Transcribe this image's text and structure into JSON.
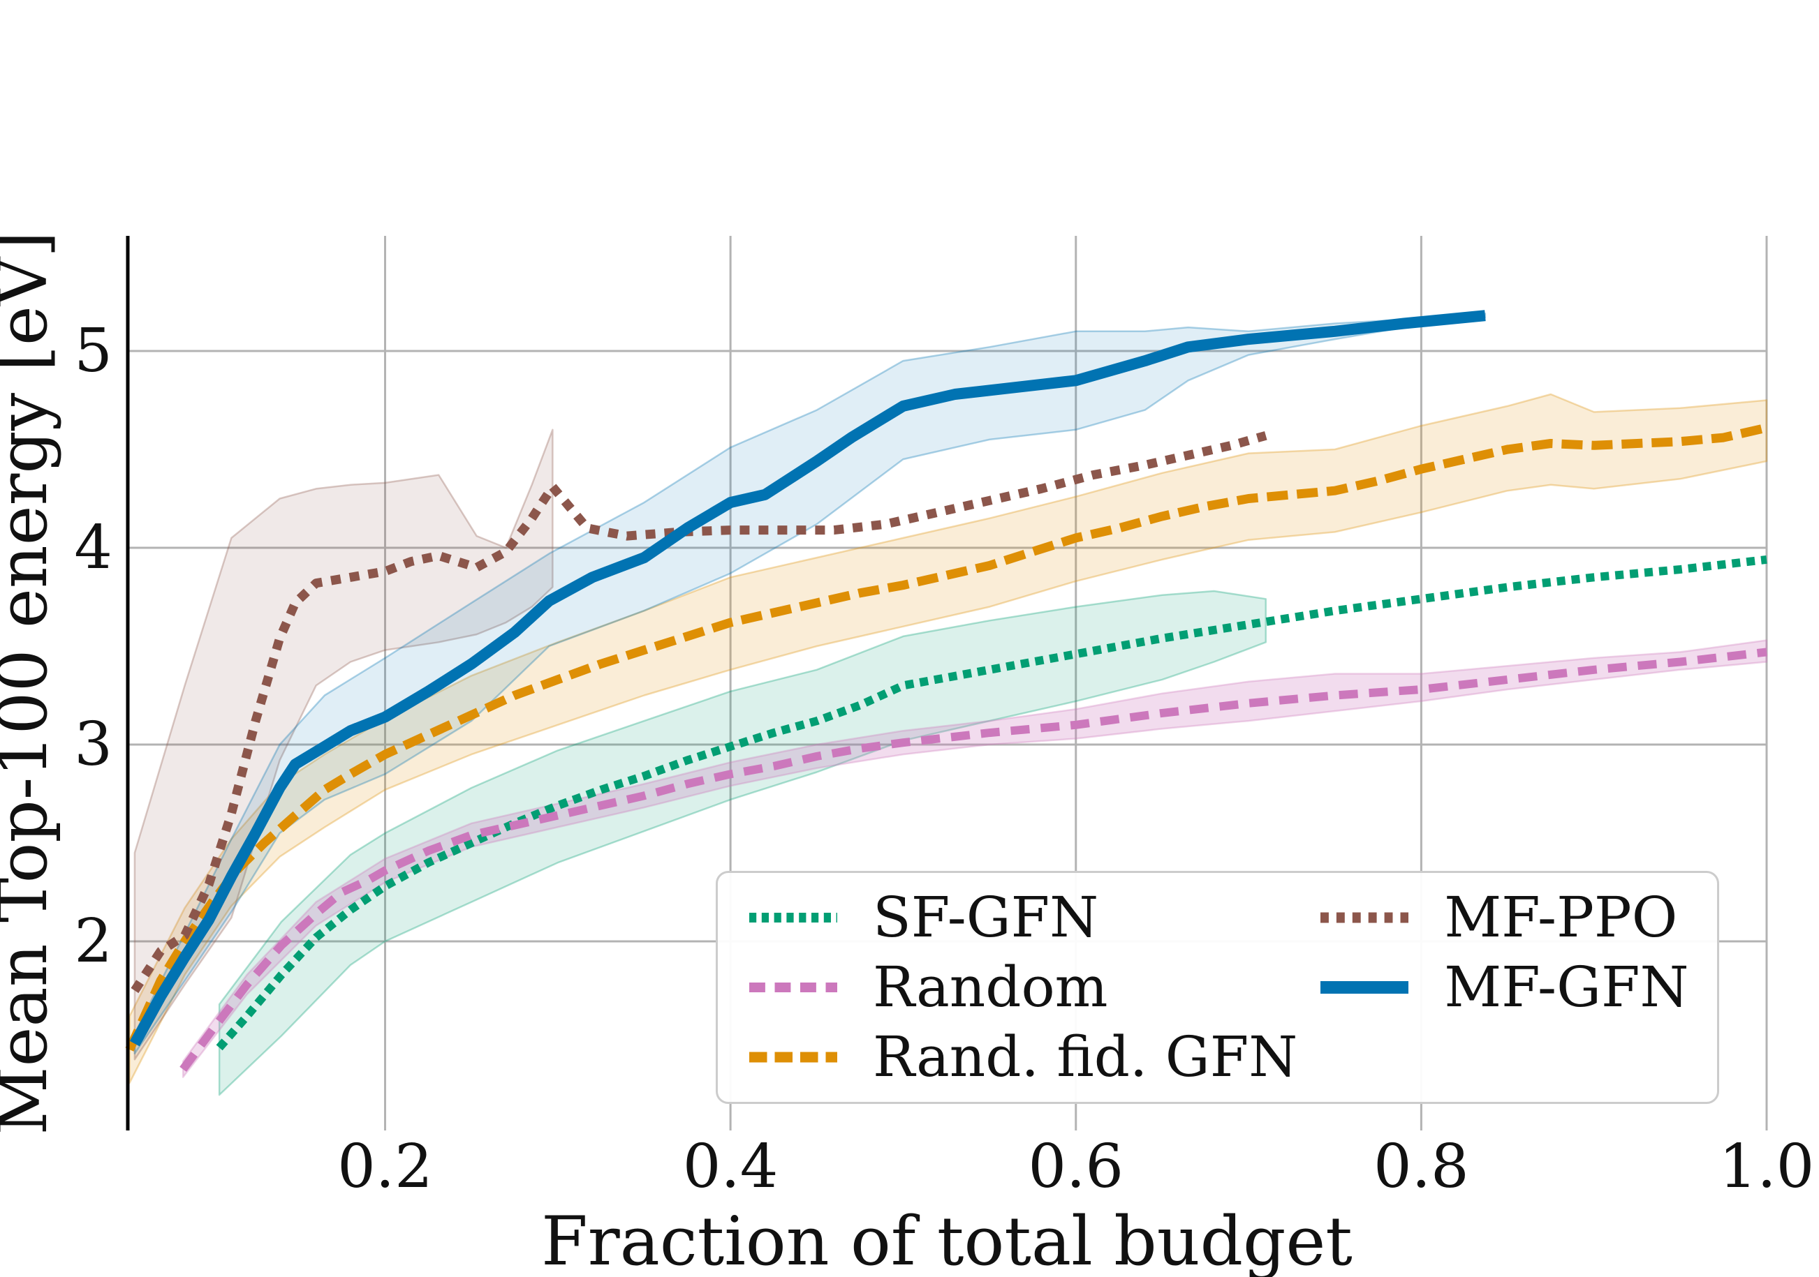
{
  "figure": {
    "background": "#ffffff"
  },
  "colors": {
    "grid": "#b3b3b3",
    "left_spine": "#000000",
    "text": "#111111",
    "legend_border": "#cccccc",
    "accent_blue": "#0173B2",
    "accent_orange": "#DE8F05",
    "accent_green": "#029E73",
    "accent_pink": "#CC78BC",
    "accent_brown": "#8C564B"
  },
  "chart_data": {
    "type": "line",
    "title": "",
    "xlabel": "Fraction of total budget",
    "ylabel": "Mean Top-100 energy [eV]",
    "xlim": [
      0.051,
      1.0
    ],
    "ylim": [
      1.039,
      5.585
    ],
    "grid": true,
    "legend_position": "lower right",
    "x_ticks": [
      {
        "v": 0.2,
        "label": "0.2"
      },
      {
        "v": 0.4,
        "label": "0.4"
      },
      {
        "v": 0.6,
        "label": "0.6"
      },
      {
        "v": 0.8,
        "label": "0.8"
      },
      {
        "v": 1.0,
        "label": "1.0"
      }
    ],
    "y_ticks": [
      {
        "v": 2,
        "label": "2"
      },
      {
        "v": 3,
        "label": "3"
      },
      {
        "v": 4,
        "label": "4"
      },
      {
        "v": 5,
        "label": "5"
      }
    ],
    "legend_columns": [
      [
        0,
        1,
        2
      ],
      [
        3,
        4
      ]
    ],
    "series": [
      {
        "name": "sf-gfn",
        "label": "SF-GFN",
        "color": "#029E73",
        "dash": "12 9",
        "width": 12,
        "band_opacity": 0.14,
        "points": [
          [
            0.104,
            1.46
          ],
          [
            0.12,
            1.62
          ],
          [
            0.14,
            1.83
          ],
          [
            0.16,
            2.02
          ],
          [
            0.18,
            2.16
          ],
          [
            0.2,
            2.28
          ],
          [
            0.225,
            2.4
          ],
          [
            0.25,
            2.5
          ],
          [
            0.275,
            2.6
          ],
          [
            0.3,
            2.69
          ],
          [
            0.325,
            2.77
          ],
          [
            0.35,
            2.84
          ],
          [
            0.375,
            2.92
          ],
          [
            0.4,
            2.99
          ],
          [
            0.425,
            3.06
          ],
          [
            0.45,
            3.12
          ],
          [
            0.475,
            3.2
          ],
          [
            0.5,
            3.3
          ],
          [
            0.55,
            3.38
          ],
          [
            0.6,
            3.46
          ],
          [
            0.65,
            3.54
          ],
          [
            0.7,
            3.61
          ],
          [
            0.75,
            3.68
          ],
          [
            0.8,
            3.74
          ],
          [
            0.85,
            3.8
          ],
          [
            0.9,
            3.85
          ],
          [
            0.95,
            3.89
          ],
          [
            1.0,
            3.94
          ]
        ],
        "band": [
          [
            0.104,
            1.22,
            1.68
          ],
          [
            0.14,
            1.52,
            2.1
          ],
          [
            0.18,
            1.88,
            2.44
          ],
          [
            0.2,
            2.0,
            2.55
          ],
          [
            0.25,
            2.2,
            2.78
          ],
          [
            0.3,
            2.4,
            2.97
          ],
          [
            0.35,
            2.56,
            3.12
          ],
          [
            0.4,
            2.72,
            3.27
          ],
          [
            0.45,
            2.86,
            3.38
          ],
          [
            0.5,
            3.02,
            3.55
          ],
          [
            0.55,
            3.12,
            3.63
          ],
          [
            0.6,
            3.22,
            3.7
          ],
          [
            0.65,
            3.33,
            3.76
          ],
          [
            0.68,
            3.42,
            3.78
          ],
          [
            0.71,
            3.52,
            3.74
          ]
        ]
      },
      {
        "name": "random",
        "label": "Random",
        "color": "#CC78BC",
        "dash": "27 16",
        "width": 12,
        "band_opacity": 0.26,
        "points": [
          [
            0.083,
            1.35
          ],
          [
            0.1,
            1.55
          ],
          [
            0.12,
            1.78
          ],
          [
            0.14,
            1.98
          ],
          [
            0.16,
            2.14
          ],
          [
            0.175,
            2.25
          ],
          [
            0.19,
            2.31
          ],
          [
            0.2,
            2.36
          ],
          [
            0.225,
            2.46
          ],
          [
            0.25,
            2.54
          ],
          [
            0.275,
            2.59
          ],
          [
            0.3,
            2.64
          ],
          [
            0.325,
            2.69
          ],
          [
            0.35,
            2.74
          ],
          [
            0.375,
            2.8
          ],
          [
            0.4,
            2.85
          ],
          [
            0.425,
            2.89
          ],
          [
            0.45,
            2.94
          ],
          [
            0.475,
            2.98
          ],
          [
            0.5,
            3.01
          ],
          [
            0.55,
            3.06
          ],
          [
            0.6,
            3.1
          ],
          [
            0.65,
            3.16
          ],
          [
            0.7,
            3.21
          ],
          [
            0.75,
            3.25
          ],
          [
            0.8,
            3.28
          ],
          [
            0.85,
            3.33
          ],
          [
            0.9,
            3.38
          ],
          [
            0.95,
            3.42
          ],
          [
            1.0,
            3.47
          ]
        ],
        "band": [
          [
            0.083,
            1.31,
            1.39
          ],
          [
            0.12,
            1.73,
            1.83
          ],
          [
            0.16,
            2.08,
            2.2
          ],
          [
            0.2,
            2.3,
            2.42
          ],
          [
            0.25,
            2.48,
            2.6
          ],
          [
            0.3,
            2.58,
            2.7
          ],
          [
            0.35,
            2.68,
            2.8
          ],
          [
            0.4,
            2.79,
            2.91
          ],
          [
            0.45,
            2.88,
            3.0
          ],
          [
            0.5,
            2.95,
            3.07
          ],
          [
            0.55,
            3.0,
            3.12
          ],
          [
            0.6,
            3.03,
            3.18
          ],
          [
            0.65,
            3.08,
            3.26
          ],
          [
            0.7,
            3.12,
            3.32
          ],
          [
            0.75,
            3.17,
            3.36
          ],
          [
            0.8,
            3.22,
            3.36
          ],
          [
            0.85,
            3.28,
            3.4
          ],
          [
            0.9,
            3.33,
            3.44
          ],
          [
            0.95,
            3.38,
            3.47
          ],
          [
            1.0,
            3.42,
            3.53
          ]
        ]
      },
      {
        "name": "rand-fid-gfn",
        "label": "Rand. fid. GFN",
        "color": "#DE8F05",
        "dash": "30 13",
        "width": 13,
        "band_opacity": 0.16,
        "points": [
          [
            0.052,
            1.45
          ],
          [
            0.07,
            1.8
          ],
          [
            0.084,
            2.0
          ],
          [
            0.1,
            2.2
          ],
          [
            0.115,
            2.37
          ],
          [
            0.13,
            2.5
          ],
          [
            0.148,
            2.64
          ],
          [
            0.165,
            2.77
          ],
          [
            0.18,
            2.85
          ],
          [
            0.2,
            2.95
          ],
          [
            0.225,
            3.05
          ],
          [
            0.25,
            3.15
          ],
          [
            0.275,
            3.25
          ],
          [
            0.3,
            3.33
          ],
          [
            0.325,
            3.41
          ],
          [
            0.35,
            3.48
          ],
          [
            0.375,
            3.55
          ],
          [
            0.4,
            3.62
          ],
          [
            0.425,
            3.67
          ],
          [
            0.45,
            3.72
          ],
          [
            0.475,
            3.77
          ],
          [
            0.5,
            3.81
          ],
          [
            0.525,
            3.86
          ],
          [
            0.55,
            3.91
          ],
          [
            0.575,
            3.98
          ],
          [
            0.6,
            4.05
          ],
          [
            0.625,
            4.1
          ],
          [
            0.65,
            4.16
          ],
          [
            0.675,
            4.21
          ],
          [
            0.7,
            4.25
          ],
          [
            0.725,
            4.27
          ],
          [
            0.75,
            4.29
          ],
          [
            0.775,
            4.34
          ],
          [
            0.8,
            4.4
          ],
          [
            0.825,
            4.45
          ],
          [
            0.85,
            4.5
          ],
          [
            0.875,
            4.53
          ],
          [
            0.9,
            4.52
          ],
          [
            0.925,
            4.53
          ],
          [
            0.95,
            4.54
          ],
          [
            0.975,
            4.56
          ],
          [
            1.0,
            4.61
          ]
        ],
        "band": [
          [
            0.052,
            1.28,
            1.62
          ],
          [
            0.084,
            1.83,
            2.17
          ],
          [
            0.111,
            2.18,
            2.52
          ],
          [
            0.139,
            2.43,
            2.8
          ],
          [
            0.165,
            2.58,
            2.95
          ],
          [
            0.2,
            2.77,
            3.13
          ],
          [
            0.25,
            2.95,
            3.35
          ],
          [
            0.3,
            3.1,
            3.52
          ],
          [
            0.35,
            3.25,
            3.68
          ],
          [
            0.4,
            3.38,
            3.85
          ],
          [
            0.45,
            3.5,
            3.95
          ],
          [
            0.5,
            3.6,
            4.05
          ],
          [
            0.55,
            3.7,
            4.15
          ],
          [
            0.6,
            3.83,
            4.26
          ],
          [
            0.65,
            3.94,
            4.38
          ],
          [
            0.7,
            4.04,
            4.48
          ],
          [
            0.75,
            4.08,
            4.5
          ],
          [
            0.8,
            4.18,
            4.62
          ],
          [
            0.85,
            4.29,
            4.72
          ],
          [
            0.875,
            4.32,
            4.78
          ],
          [
            0.9,
            4.3,
            4.69
          ],
          [
            0.95,
            4.35,
            4.71
          ],
          [
            1.0,
            4.44,
            4.75
          ]
        ]
      },
      {
        "name": "mf-ppo",
        "label": "MF-PPO",
        "color": "#8C564B",
        "dash": "14 13",
        "width": 13,
        "band_opacity": 0.13,
        "points": [
          [
            0.055,
            1.75
          ],
          [
            0.07,
            1.95
          ],
          [
            0.084,
            2.03
          ],
          [
            0.098,
            2.29
          ],
          [
            0.111,
            2.65
          ],
          [
            0.125,
            3.12
          ],
          [
            0.139,
            3.54
          ],
          [
            0.148,
            3.72
          ],
          [
            0.16,
            3.82
          ],
          [
            0.18,
            3.85
          ],
          [
            0.2,
            3.88
          ],
          [
            0.215,
            3.93
          ],
          [
            0.231,
            3.96
          ],
          [
            0.253,
            3.9
          ],
          [
            0.27,
            3.98
          ],
          [
            0.285,
            4.15
          ],
          [
            0.297,
            4.31
          ],
          [
            0.317,
            4.1
          ],
          [
            0.34,
            4.06
          ],
          [
            0.37,
            4.08
          ],
          [
            0.4,
            4.09
          ],
          [
            0.43,
            4.09
          ],
          [
            0.46,
            4.09
          ],
          [
            0.49,
            4.12
          ],
          [
            0.52,
            4.18
          ],
          [
            0.55,
            4.24
          ],
          [
            0.58,
            4.3
          ],
          [
            0.61,
            4.37
          ],
          [
            0.64,
            4.42
          ],
          [
            0.67,
            4.48
          ],
          [
            0.69,
            4.52
          ],
          [
            0.71,
            4.57
          ]
        ],
        "band": [
          [
            0.055,
            1.4,
            2.45
          ],
          [
            0.084,
            1.78,
            3.3
          ],
          [
            0.111,
            2.12,
            4.05
          ],
          [
            0.139,
            2.92,
            4.25
          ],
          [
            0.16,
            3.3,
            4.3
          ],
          [
            0.18,
            3.42,
            4.32
          ],
          [
            0.2,
            3.48,
            4.33
          ],
          [
            0.231,
            3.52,
            4.37
          ],
          [
            0.253,
            3.56,
            4.06
          ],
          [
            0.27,
            3.62,
            4.0
          ],
          [
            0.285,
            3.7,
            4.32
          ],
          [
            0.297,
            3.8,
            4.6
          ]
        ]
      },
      {
        "name": "mf-gfn",
        "label": "MF-GFN",
        "color": "#0173B2",
        "dash": "solid",
        "width": 16,
        "band_opacity": 0.12,
        "points": [
          [
            0.055,
            1.48
          ],
          [
            0.07,
            1.72
          ],
          [
            0.084,
            1.92
          ],
          [
            0.098,
            2.11
          ],
          [
            0.111,
            2.33
          ],
          [
            0.125,
            2.55
          ],
          [
            0.139,
            2.78
          ],
          [
            0.148,
            2.9
          ],
          [
            0.165,
            2.99
          ],
          [
            0.18,
            3.07
          ],
          [
            0.2,
            3.14
          ],
          [
            0.225,
            3.27
          ],
          [
            0.25,
            3.41
          ],
          [
            0.275,
            3.57
          ],
          [
            0.295,
            3.73
          ],
          [
            0.32,
            3.85
          ],
          [
            0.35,
            3.95
          ],
          [
            0.375,
            4.1
          ],
          [
            0.4,
            4.23
          ],
          [
            0.42,
            4.27
          ],
          [
            0.45,
            4.44
          ],
          [
            0.47,
            4.56
          ],
          [
            0.5,
            4.72
          ],
          [
            0.53,
            4.78
          ],
          [
            0.56,
            4.81
          ],
          [
            0.6,
            4.85
          ],
          [
            0.62,
            4.9
          ],
          [
            0.64,
            4.95
          ],
          [
            0.665,
            5.02
          ],
          [
            0.7,
            5.06
          ],
          [
            0.75,
            5.1
          ],
          [
            0.79,
            5.14
          ],
          [
            0.837,
            5.18
          ]
        ],
        "band": [
          [
            0.055,
            1.43,
            1.53
          ],
          [
            0.084,
            1.8,
            2.04
          ],
          [
            0.111,
            2.15,
            2.52
          ],
          [
            0.139,
            2.55,
            3.0
          ],
          [
            0.165,
            2.72,
            3.25
          ],
          [
            0.2,
            2.85,
            3.44
          ],
          [
            0.25,
            3.12,
            3.72
          ],
          [
            0.295,
            3.5,
            3.97
          ],
          [
            0.35,
            3.68,
            4.23
          ],
          [
            0.4,
            3.87,
            4.51
          ],
          [
            0.45,
            4.12,
            4.7
          ],
          [
            0.5,
            4.45,
            4.95
          ],
          [
            0.55,
            4.55,
            5.02
          ],
          [
            0.6,
            4.6,
            5.1
          ],
          [
            0.64,
            4.7,
            5.1
          ],
          [
            0.665,
            4.85,
            5.12
          ],
          [
            0.7,
            4.98,
            5.1
          ],
          [
            0.75,
            5.06,
            5.14
          ],
          [
            0.79,
            5.12,
            5.16
          ],
          [
            0.837,
            5.17,
            5.19
          ]
        ]
      }
    ]
  }
}
